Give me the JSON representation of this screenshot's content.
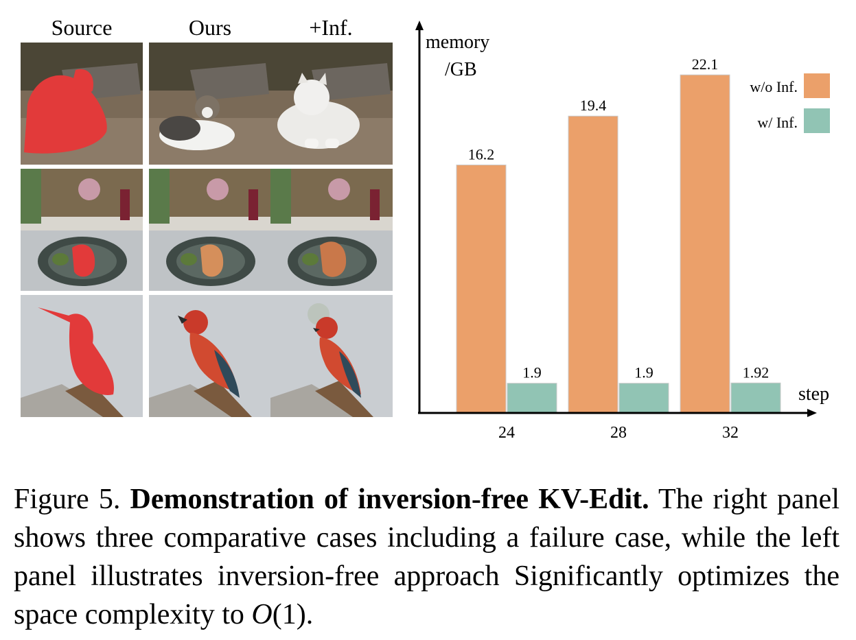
{
  "panel": {
    "columns": [
      "Source",
      "Ours",
      "+Inf."
    ]
  },
  "colors": {
    "without_inference": "#eba06a",
    "with_inference": "#91c4b4"
  },
  "chart_data": {
    "type": "bar",
    "categories": [
      "24",
      "28",
      "32"
    ],
    "xlabel": "step",
    "ylabel": [
      "memory",
      "/GB"
    ],
    "ylim": [
      0,
      23.5
    ],
    "legend_position": "top-right",
    "series": [
      {
        "name": "w/o Inf.",
        "values": [
          16.2,
          19.4,
          22.1
        ],
        "labels": [
          "16.2",
          "19.4",
          "22.1"
        ]
      },
      {
        "name": "w/ Inf.",
        "values": [
          1.9,
          1.9,
          1.92
        ],
        "labels": [
          "1.9",
          "1.9",
          "1.92"
        ]
      }
    ]
  },
  "caption": {
    "prefix": "Figure 5.",
    "bold": "Demonstration of inversion-free KV-Edit.",
    "body": "The right panel shows three comparative cases including a failure case, while the left panel illustrates inversion-free approach Significantly optimizes the space complexity to",
    "math": "O",
    "math_arg": "(1)",
    "end": "."
  }
}
